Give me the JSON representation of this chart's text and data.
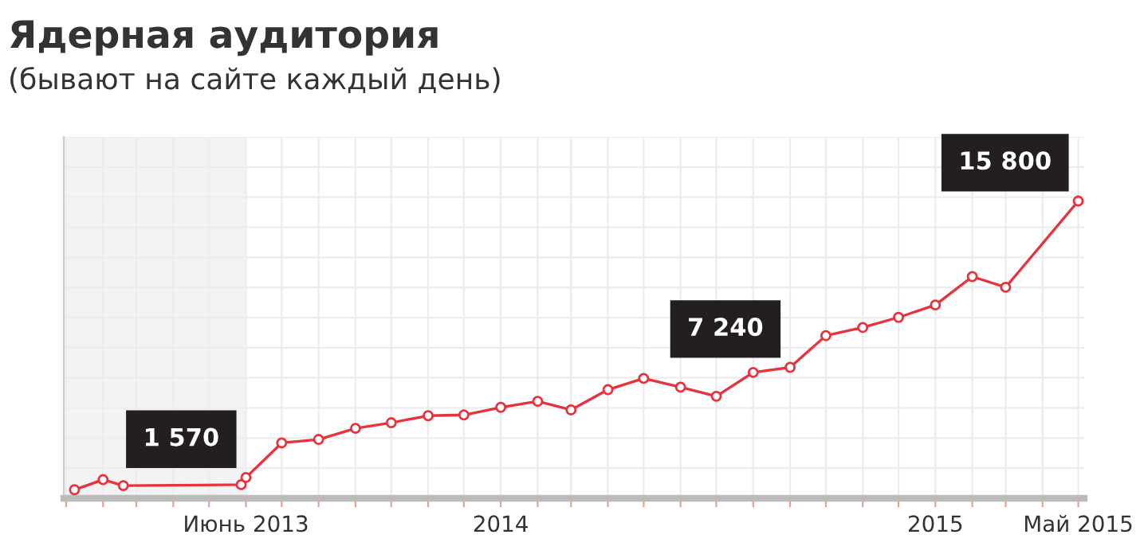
{
  "chart_data": {
    "type": "line",
    "title": "Ядерная аудитория",
    "subtitle": "(бывают на сайте каждый день)",
    "series": [
      {
        "color": "#e8323c",
        "x": [
          "2013-01-08",
          "2013-02-01",
          "2013-02-18",
          "2013-05-28",
          "2013-06-01",
          "2013-07-01",
          "2013-08-01",
          "2013-09-01",
          "2013-10-01",
          "2013-11-01",
          "2013-12-01",
          "2014-01-01",
          "2014-02-01",
          "2014-03-01",
          "2014-04-01",
          "2014-05-01",
          "2014-06-01",
          "2014-07-01",
          "2014-08-01",
          "2014-09-01",
          "2014-10-01",
          "2014-11-01",
          "2014-12-01",
          "2015-01-01",
          "2015-02-01",
          "2015-03-01",
          "2015-05-01"
        ],
        "values": [
          940,
          1460,
          1150,
          1200,
          1570,
          3350,
          3530,
          4100,
          4390,
          4750,
          4790,
          5180,
          5490,
          5050,
          6090,
          6670,
          6220,
          5750,
          6980,
          7240,
          8870,
          9290,
          9810,
          10450,
          11910,
          11360,
          15800
        ],
        "value_labels": [
          null,
          null,
          null,
          null,
          "1 570",
          null,
          null,
          null,
          null,
          null,
          null,
          null,
          null,
          null,
          null,
          null,
          null,
          null,
          null,
          "7 240",
          null,
          null,
          null,
          null,
          null,
          null,
          "15 800"
        ]
      }
    ],
    "xlim": [
      "2012-12-30",
      "2015-05-06"
    ],
    "xticks": [
      {
        "value": "2013-01-01",
        "label": null
      },
      {
        "value": "2013-02-01",
        "label": null
      },
      {
        "value": "2013-03-01",
        "label": null
      },
      {
        "value": "2013-04-01",
        "label": null
      },
      {
        "value": "2013-05-01",
        "label": null
      },
      {
        "value": "2013-06-01",
        "label": "Июнь 2013"
      },
      {
        "value": "2013-07-01",
        "label": null
      },
      {
        "value": "2013-08-01",
        "label": null
      },
      {
        "value": "2013-09-01",
        "label": null
      },
      {
        "value": "2013-10-01",
        "label": null
      },
      {
        "value": "2013-11-01",
        "label": null
      },
      {
        "value": "2013-12-01",
        "label": null
      },
      {
        "value": "2014-01-01",
        "label": "2014"
      },
      {
        "value": "2014-02-01",
        "label": null
      },
      {
        "value": "2014-03-01",
        "label": null
      },
      {
        "value": "2014-04-01",
        "label": null
      },
      {
        "value": "2014-05-01",
        "label": null
      },
      {
        "value": "2014-06-01",
        "label": null
      },
      {
        "value": "2014-07-01",
        "label": null
      },
      {
        "value": "2014-08-01",
        "label": null
      },
      {
        "value": "2014-09-01",
        "label": null
      },
      {
        "value": "2014-10-01",
        "label": null
      },
      {
        "value": "2014-11-01",
        "label": null
      },
      {
        "value": "2014-12-01",
        "label": null
      },
      {
        "value": "2015-01-01",
        "label": "2015"
      },
      {
        "value": "2015-02-01",
        "label": null
      },
      {
        "value": "2015-03-01",
        "label": null
      },
      {
        "value": "2015-04-01",
        "label": null
      },
      {
        "value": "2015-05-01",
        "label": "Май 2015"
      }
    ],
    "ylim": [
      500,
      19100
    ],
    "yticks": [
      {
        "value": 2050,
        "label": null
      },
      {
        "value": 3600,
        "label": null
      },
      {
        "value": 5150,
        "label": null
      },
      {
        "value": 6700,
        "label": null
      },
      {
        "value": 8250,
        "label": null
      },
      {
        "value": 9800,
        "label": null
      },
      {
        "value": 11350,
        "label": null
      },
      {
        "value": 12900,
        "label": null
      },
      {
        "value": 14450,
        "label": null
      },
      {
        "value": 16000,
        "label": null
      },
      {
        "value": 17550,
        "label": null
      },
      {
        "value": 19100,
        "label": null
      }
    ],
    "tick_labels": "x",
    "bands": [
      {
        "axis": "x",
        "from": "2012-12-30",
        "to": "2013-06-01",
        "color": "#f3f3f3"
      }
    ],
    "grid": true,
    "marker": "circle",
    "line_style": "solid",
    "legend": false
  }
}
